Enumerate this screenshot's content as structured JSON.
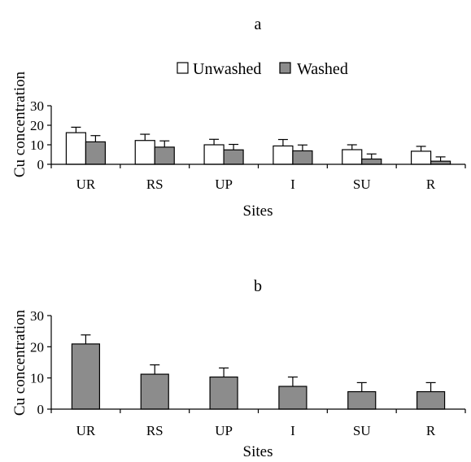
{
  "chart_data": [
    {
      "type": "bar",
      "panel_label": "a",
      "title": "",
      "xlabel": "Sites",
      "ylabel": "Cu concentration",
      "categories": [
        "UR",
        "RS",
        "UP",
        "I",
        "SU",
        "R"
      ],
      "ylim": [
        0,
        30
      ],
      "yticks": [
        0,
        10,
        20,
        30
      ],
      "grid": false,
      "legend_position": "top-center",
      "colors": {
        "Unwashed": "#ffffff",
        "Washed": "#8c8c8c",
        "stroke": "#000000"
      },
      "series": [
        {
          "name": "Unwashed",
          "values": [
            16.2,
            12.2,
            10.0,
            9.4,
            7.5,
            6.7
          ],
          "errors": [
            2.8,
            3.2,
            2.8,
            3.3,
            2.5,
            2.5
          ]
        },
        {
          "name": "Washed",
          "values": [
            11.5,
            8.8,
            7.4,
            6.9,
            2.7,
            1.6
          ],
          "errors": [
            3.2,
            3.2,
            2.8,
            3.0,
            2.6,
            2.2
          ]
        }
      ]
    },
    {
      "type": "bar",
      "panel_label": "b",
      "title": "",
      "xlabel": "Sites",
      "ylabel": "Cu concentration",
      "categories": [
        "UR",
        "RS",
        "UP",
        "I",
        "SU",
        "R"
      ],
      "ylim": [
        0,
        30
      ],
      "yticks": [
        0,
        10,
        20,
        30
      ],
      "grid": false,
      "legend_position": "none",
      "colors": {
        "bar": "#8c8c8c",
        "stroke": "#000000"
      },
      "series": [
        {
          "values": [
            20.9,
            11.2,
            10.3,
            7.3,
            5.6,
            5.6
          ],
          "errors": [
            2.9,
            3.0,
            2.9,
            3.0,
            2.9,
            2.9
          ]
        }
      ]
    }
  ]
}
